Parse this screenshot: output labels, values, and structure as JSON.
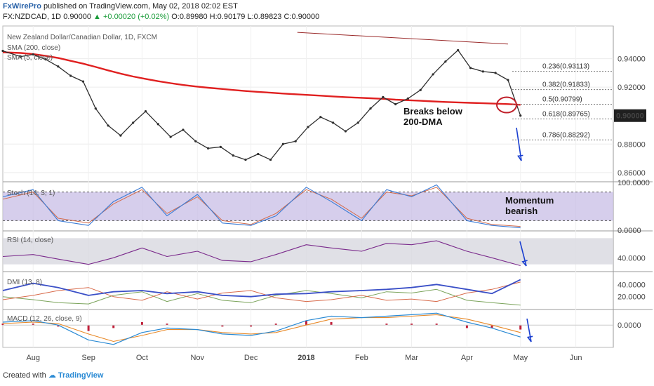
{
  "header": {
    "publisher": "FxWirePro",
    "published_text": "published on TradingView.com, May 02, 2018 02:02 EST",
    "symbol": "FX:NZDCAD, 1D",
    "last": "0.90000",
    "change": "+0.00020 (+0.02%)",
    "open": "O:0.89980",
    "high": "H:0.90179",
    "low": "L:0.89823",
    "close": "C:0.90000"
  },
  "footer": {
    "created_with": "Created with",
    "brand": "TradingView"
  },
  "colors": {
    "price": "#2e2e2e",
    "sma200": "#e02020",
    "sma5": "#8b1a1a",
    "stoch_k": "#3a7bd5",
    "stoch_d": "#d36a4a",
    "rsi": "#7b2b8c",
    "dmi_adx": "#3a4fc7",
    "dmi_plus": "#7aa35a",
    "dmi_minus": "#d86a4a",
    "macd": "#2a8ad4",
    "signal": "#e88a2a",
    "hist": "#c0203a",
    "arrow": "#1a3fd0",
    "band": "#c8bde6"
  },
  "chart_data": [
    {
      "type": "line",
      "title": "New Zealand Dollar/Canadian Dollar, 1D, FXCM",
      "indicators": [
        "SMA (200, close)",
        "SMA (5, close)"
      ],
      "x": [
        "2017-07-15",
        "2017-07-25",
        "2017-08-01",
        "2017-08-08",
        "2017-08-15",
        "2017-08-22",
        "2017-08-29",
        "2017-09-05",
        "2017-09-12",
        "2017-09-19",
        "2017-09-26",
        "2017-10-03",
        "2017-10-10",
        "2017-10-17",
        "2017-10-24",
        "2017-10-31",
        "2017-11-07",
        "2017-11-14",
        "2017-11-21",
        "2017-11-28",
        "2017-12-05",
        "2017-12-12",
        "2017-12-19",
        "2017-12-26",
        "2018-01-02",
        "2018-01-09",
        "2018-01-16",
        "2018-01-23",
        "2018-01-30",
        "2018-02-06",
        "2018-02-13",
        "2018-02-20",
        "2018-02-27",
        "2018-03-06",
        "2018-03-13",
        "2018-03-20",
        "2018-03-27",
        "2018-04-03",
        "2018-04-10",
        "2018-04-17",
        "2018-04-24",
        "2018-05-01"
      ],
      "series": [
        {
          "name": "price",
          "values": [
            0.9455,
            0.9415,
            0.943,
            0.9395,
            0.9345,
            0.928,
            0.924,
            0.905,
            0.893,
            0.886,
            0.895,
            0.903,
            0.894,
            0.885,
            0.89,
            0.882,
            0.877,
            0.878,
            0.872,
            0.869,
            0.873,
            0.869,
            0.88,
            0.882,
            0.892,
            0.899,
            0.895,
            0.889,
            0.895,
            0.905,
            0.913,
            0.908,
            0.912,
            0.918,
            0.929,
            0.938,
            0.946,
            0.9335,
            0.931,
            0.93,
            0.925,
            0.9
          ]
        },
        {
          "name": "SMA 200",
          "values": [
            0.9445,
            0.944,
            0.9432,
            0.942,
            0.9405,
            0.9385,
            0.9365,
            0.9342,
            0.9318,
            0.9295,
            0.9275,
            0.9258,
            0.9242,
            0.9228,
            0.9215,
            0.9205,
            0.9196,
            0.9188,
            0.918,
            0.9173,
            0.9167,
            0.9161,
            0.9155,
            0.915,
            0.9145,
            0.914,
            0.9135,
            0.913,
            0.9126,
            0.9122,
            0.9118,
            0.9112,
            0.9108,
            0.9104,
            0.91,
            0.9096,
            0.9093,
            0.909,
            0.9087,
            0.9084,
            0.9081,
            0.9076
          ]
        }
      ],
      "trendline": {
        "from": [
          "2017-12-27",
          0.9585
        ],
        "to": [
          "2018-04-24",
          0.9503
        ]
      },
      "fibonacci": [
        {
          "label": "0.236(0.93113)",
          "value": 0.93113
        },
        {
          "label": "0.382(0.91833)",
          "value": 0.91833
        },
        {
          "label": "0.5(0.90799)",
          "value": 0.90799
        },
        {
          "label": "0.618(0.89765)",
          "value": 0.89765
        },
        {
          "label": "0.786(0.88292)",
          "value": 0.88292
        }
      ],
      "annotation": "Breaks below\n200-DMA",
      "ylim": [
        0.854,
        0.963
      ],
      "yticks": [
        "0.94000",
        "0.92000",
        "0.88000",
        "0.86000"
      ],
      "last_price_label": "0.90000",
      "xtick_labels": [
        {
          "label": "Aug",
          "date": "2017-08-01"
        },
        {
          "label": "Sep",
          "date": "2017-09-01"
        },
        {
          "label": "Oct",
          "date": "2017-10-01"
        },
        {
          "label": "Nov",
          "date": "2017-11-01"
        },
        {
          "label": "Dec",
          "date": "2017-12-01"
        },
        {
          "label": "2018",
          "date": "2018-01-01"
        },
        {
          "label": "Feb",
          "date": "2018-02-01"
        },
        {
          "label": "Mar",
          "date": "2018-03-01"
        },
        {
          "label": "Apr",
          "date": "2018-04-01"
        },
        {
          "label": "May",
          "date": "2018-05-01"
        },
        {
          "label": "Jun",
          "date": "2018-06-01"
        }
      ]
    },
    {
      "type": "line",
      "title": "Stoch (14, 3, 1)",
      "x": [
        "2017-07-15",
        "2017-08-01",
        "2017-08-15",
        "2017-09-01",
        "2017-09-15",
        "2017-10-01",
        "2017-10-15",
        "2017-11-01",
        "2017-11-15",
        "2017-12-01",
        "2017-12-15",
        "2018-01-01",
        "2018-01-15",
        "2018-02-01",
        "2018-02-15",
        "2018-03-01",
        "2018-03-15",
        "2018-04-01",
        "2018-04-15",
        "2018-05-01"
      ],
      "series": [
        {
          "name": "%K",
          "values": [
            70,
            85,
            20,
            10,
            60,
            90,
            30,
            75,
            15,
            10,
            30,
            90,
            60,
            20,
            85,
            70,
            95,
            20,
            10,
            5
          ]
        },
        {
          "name": "%D",
          "values": [
            65,
            80,
            25,
            15,
            55,
            85,
            35,
            70,
            20,
            12,
            35,
            85,
            65,
            25,
            80,
            72,
            90,
            25,
            12,
            8
          ]
        }
      ],
      "ylim": [
        0,
        100
      ],
      "yticks": [
        "100.0000",
        "0.0000"
      ],
      "band": [
        20,
        80
      ],
      "annotation": "Momentum\nbearish"
    },
    {
      "type": "line",
      "title": "RSI (14, close)",
      "x": [
        "2017-07-15",
        "2017-08-01",
        "2017-08-15",
        "2017-09-01",
        "2017-09-15",
        "2017-10-01",
        "2017-10-15",
        "2017-11-01",
        "2017-11-15",
        "2017-12-01",
        "2017-12-15",
        "2018-01-01",
        "2018-01-15",
        "2018-02-01",
        "2018-02-15",
        "2018-03-01",
        "2018-03-15",
        "2018-04-01",
        "2018-04-15",
        "2018-05-01"
      ],
      "series": [
        {
          "name": "RSI",
          "values": [
            42,
            45,
            38,
            30,
            40,
            55,
            42,
            50,
            36,
            34,
            45,
            60,
            55,
            50,
            62,
            60,
            66,
            50,
            40,
            28
          ]
        }
      ],
      "ylim": [
        20,
        80
      ],
      "yticks": [
        "40.0000"
      ],
      "band": [
        30,
        70
      ]
    },
    {
      "type": "line",
      "title": "DMI (13, 8)",
      "x": [
        "2017-07-15",
        "2017-08-01",
        "2017-08-15",
        "2017-09-01",
        "2017-09-15",
        "2017-10-01",
        "2017-10-15",
        "2017-11-01",
        "2017-11-15",
        "2017-12-01",
        "2017-12-15",
        "2018-01-01",
        "2018-01-15",
        "2018-02-01",
        "2018-02-15",
        "2018-03-01",
        "2018-03-15",
        "2018-04-01",
        "2018-04-15",
        "2018-05-01"
      ],
      "series": [
        {
          "name": "ADX",
          "values": [
            30,
            42,
            35,
            22,
            28,
            30,
            25,
            28,
            22,
            20,
            24,
            25,
            28,
            30,
            32,
            35,
            40,
            32,
            25,
            48
          ]
        },
        {
          "name": "+DI",
          "values": [
            20,
            15,
            10,
            8,
            22,
            28,
            12,
            25,
            14,
            10,
            22,
            30,
            25,
            18,
            28,
            26,
            32,
            14,
            10,
            6
          ]
        },
        {
          "name": "-DI",
          "values": [
            15,
            22,
            30,
            35,
            20,
            14,
            28,
            16,
            26,
            30,
            18,
            12,
            15,
            22,
            14,
            16,
            12,
            26,
            32,
            44
          ]
        }
      ],
      "ylim": [
        0,
        60
      ],
      "yticks": [
        "40.0000",
        "20.0000"
      ]
    },
    {
      "type": "line",
      "title": "MACD (12, 26, close, 9)",
      "x": [
        "2017-07-15",
        "2017-08-01",
        "2017-08-15",
        "2017-09-01",
        "2017-09-15",
        "2017-10-01",
        "2017-10-15",
        "2017-11-01",
        "2017-11-15",
        "2017-12-01",
        "2017-12-15",
        "2018-01-01",
        "2018-01-15",
        "2018-02-01",
        "2018-02-15",
        "2018-03-01",
        "2018-03-15",
        "2018-04-01",
        "2018-04-15",
        "2018-05-01"
      ],
      "series": [
        {
          "name": "MACD",
          "values": [
            0.002,
            0.003,
            0.0,
            -0.01,
            -0.013,
            -0.005,
            -0.002,
            -0.003,
            -0.006,
            -0.007,
            -0.004,
            0.003,
            0.006,
            0.005,
            0.006,
            0.007,
            0.008,
            0.002,
            -0.002,
            -0.008
          ]
        },
        {
          "name": "Signal",
          "values": [
            0.001,
            0.002,
            0.001,
            -0.006,
            -0.011,
            -0.007,
            -0.003,
            -0.003,
            -0.005,
            -0.006,
            -0.005,
            0.0,
            0.004,
            0.005,
            0.005,
            0.006,
            0.007,
            0.004,
            0.0,
            -0.005
          ]
        }
      ],
      "ylim": [
        -0.015,
        0.01
      ],
      "yticks": [
        "0.0000"
      ]
    }
  ]
}
